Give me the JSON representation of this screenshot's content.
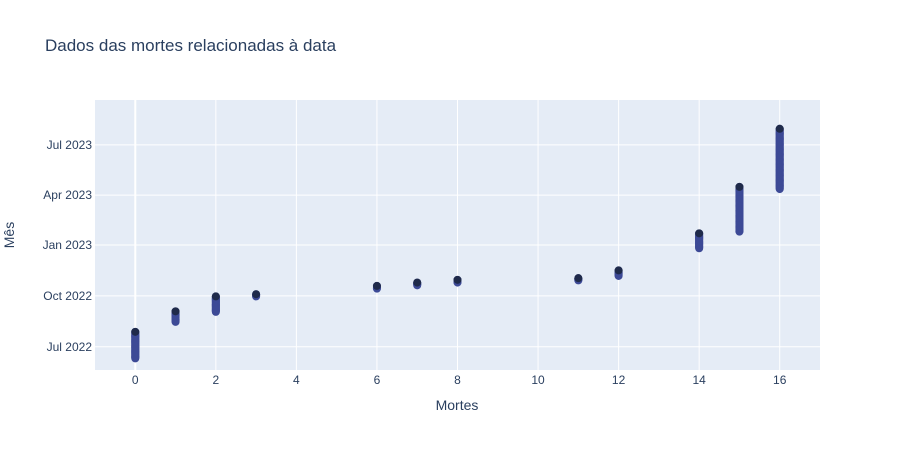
{
  "chart_data": {
    "type": "scatter",
    "title": "Dados das mortes relacionadas à data",
    "xlabel": "Mortes",
    "ylabel": "Mês",
    "xlim": [
      -1,
      17
    ],
    "ylim": [
      "2022-05-20",
      "2023-09-20"
    ],
    "x_ticks": [
      0,
      2,
      4,
      6,
      8,
      10,
      12,
      14,
      16
    ],
    "y_ticks": [
      {
        "date": "2022-07-01",
        "label": "Jul 2022"
      },
      {
        "date": "2022-10-01",
        "label": "Oct 2022"
      },
      {
        "date": "2023-01-01",
        "label": "Jan 2023"
      },
      {
        "date": "2023-04-01",
        "label": "Apr 2023"
      },
      {
        "date": "2023-07-01",
        "label": "Jul 2023"
      }
    ],
    "grid": true,
    "colors": {
      "plot_bg": "#e5ecf6",
      "grid": "#ffffff",
      "marker": "#3d4a96",
      "marker_outline": "#1f2a4a",
      "text": "#2a3f5f"
    },
    "points": [
      {
        "x": 0,
        "y_start": "2022-06-10",
        "y_end": "2022-07-28"
      },
      {
        "x": 1,
        "y_start": "2022-08-15",
        "y_end": "2022-09-03"
      },
      {
        "x": 2,
        "y_start": "2022-09-02",
        "y_end": "2022-09-30"
      },
      {
        "x": 3,
        "y_start": "2022-09-30",
        "y_end": "2022-10-04"
      },
      {
        "x": 6,
        "y_start": "2022-10-14",
        "y_end": "2022-10-19"
      },
      {
        "x": 7,
        "y_start": "2022-10-20",
        "y_end": "2022-10-25"
      },
      {
        "x": 8,
        "y_start": "2022-10-25",
        "y_end": "2022-10-30"
      },
      {
        "x": 11,
        "y_start": "2022-10-29",
        "y_end": "2022-11-02"
      },
      {
        "x": 12,
        "y_start": "2022-11-06",
        "y_end": "2022-11-16"
      },
      {
        "x": 14,
        "y_start": "2022-12-26",
        "y_end": "2023-01-22"
      },
      {
        "x": 15,
        "y_start": "2023-01-25",
        "y_end": "2023-04-16"
      },
      {
        "x": 16,
        "y_start": "2023-04-12",
        "y_end": "2023-07-30"
      }
    ]
  }
}
